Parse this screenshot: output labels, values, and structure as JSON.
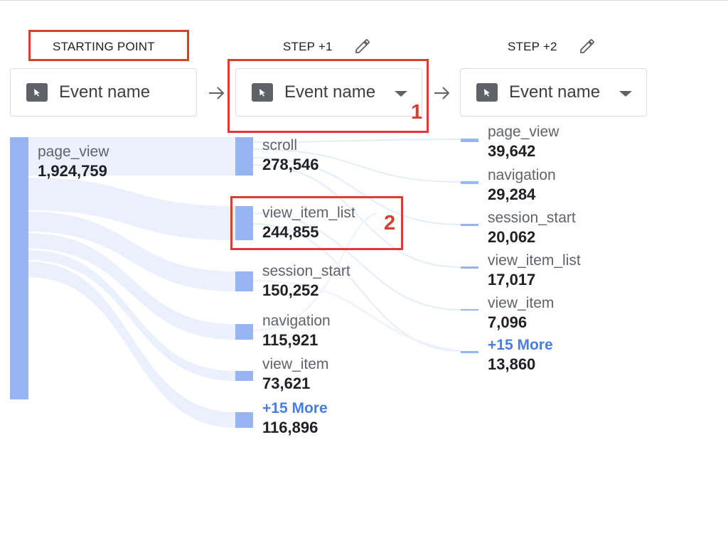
{
  "columns": [
    {
      "header": "STARTING POINT",
      "dropdown_label": "Event name",
      "dropdown_icon": "cursor-click-icon"
    },
    {
      "header": "STEP +1",
      "dropdown_label": "Event name",
      "dropdown_icon": "cursor-click-icon",
      "edit_icon": "pencil-icon"
    },
    {
      "header": "STEP +2",
      "dropdown_label": "Event name",
      "dropdown_icon": "cursor-click-icon",
      "edit_icon": "pencil-icon"
    }
  ],
  "starting_node": {
    "name": "page_view",
    "count": "1,924,759"
  },
  "step1_nodes": [
    {
      "name": "scroll",
      "count": "278,546"
    },
    {
      "name": "view_item_list",
      "count": "244,855"
    },
    {
      "name": "session_start",
      "count": "150,252"
    },
    {
      "name": "navigation",
      "count": "115,921"
    },
    {
      "name": "view_item",
      "count": "73,621"
    },
    {
      "name": "+15 More",
      "count": "116,896"
    }
  ],
  "step2_nodes": [
    {
      "name": "page_view",
      "count": "39,642"
    },
    {
      "name": "navigation",
      "count": "29,284"
    },
    {
      "name": "session_start",
      "count": "20,062"
    },
    {
      "name": "view_item_list",
      "count": "17,017"
    },
    {
      "name": "view_item",
      "count": "7,096"
    },
    {
      "name": "+15 More",
      "count": "13,860"
    }
  ],
  "annotations": {
    "label_1": "1",
    "label_2": "2",
    "color": "#d93f2f"
  },
  "colors": {
    "bar": "#97b5f2",
    "flow": "#e3ebfb",
    "more_link": "#4a7de0",
    "icon_bg": "#5f6368"
  }
}
